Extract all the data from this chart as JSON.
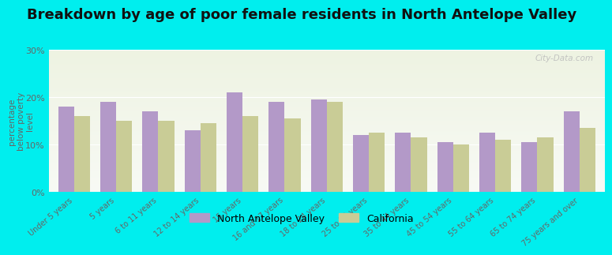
{
  "title": "Breakdown by age of poor female residents in North Antelope Valley",
  "categories": [
    "Under 5 years",
    "5 years",
    "6 to 11 years",
    "12 to 14 years",
    "15 years",
    "16 and 17 years",
    "18 to 24 years",
    "25 to 34 years",
    "35 to 44 years",
    "45 to 54 years",
    "55 to 64 years",
    "65 to 74 years",
    "75 years and over"
  ],
  "nav_values": [
    18,
    19,
    17,
    13,
    21,
    19,
    19.5,
    12,
    12.5,
    10.5,
    12.5,
    10.5,
    17
  ],
  "ca_values": [
    16,
    15,
    15,
    14.5,
    16,
    15.5,
    19,
    12.5,
    11.5,
    10,
    11,
    11.5,
    13.5
  ],
  "nav_color": "#b399c8",
  "ca_color": "#c9cc96",
  "background_color": "#00eeee",
  "plot_bg_top": "#eef3e2",
  "plot_bg_bottom": "#f8faf5",
  "ylabel": "percentage\nbelow poverty\nlevel",
  "ylim": [
    0,
    30
  ],
  "yticks": [
    0,
    10,
    20,
    30
  ],
  "ytick_labels": [
    "0%",
    "10%",
    "20%",
    "30%"
  ],
  "nav_label": "North Antelope Valley",
  "ca_label": "California",
  "title_fontsize": 13,
  "bar_width": 0.38,
  "watermark": "City-Data.com"
}
